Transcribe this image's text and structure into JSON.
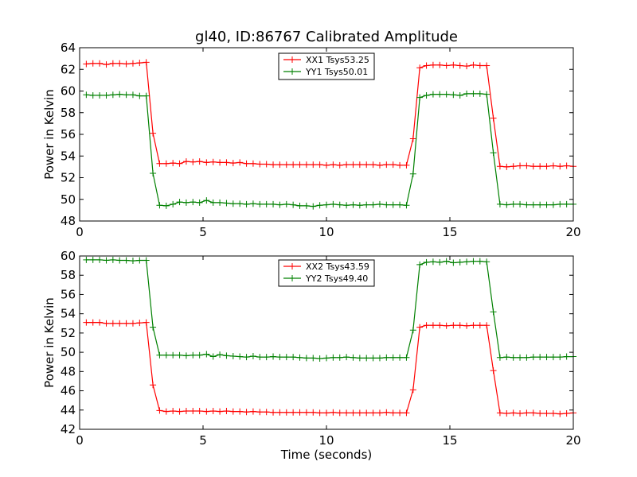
{
  "figure": {
    "title": "gl40, ID:86767 Calibrated Amplitude",
    "xlabel": "Time (seconds)"
  },
  "chart_data": [
    {
      "type": "line",
      "ylabel": "Power in Kelvin",
      "xlim": [
        0,
        20
      ],
      "ylim": [
        48,
        64
      ],
      "xticks": [
        "0",
        "5",
        "10",
        "15",
        "20"
      ],
      "yticks": [
        "48",
        "50",
        "52",
        "54",
        "56",
        "58",
        "60",
        "62",
        "64"
      ],
      "legend_position": "top-center",
      "x": [
        0.27,
        0.54,
        0.81,
        1.08,
        1.35,
        1.62,
        1.89,
        2.16,
        2.43,
        2.7,
        2.97,
        3.24,
        3.51,
        3.78,
        4.05,
        4.32,
        4.59,
        4.86,
        5.14,
        5.41,
        5.68,
        5.95,
        6.22,
        6.49,
        6.76,
        7.03,
        7.3,
        7.57,
        7.84,
        8.11,
        8.38,
        8.65,
        8.92,
        9.19,
        9.46,
        9.73,
        10.0,
        10.27,
        10.54,
        10.81,
        11.08,
        11.35,
        11.62,
        11.89,
        12.16,
        12.43,
        12.7,
        12.97,
        13.24,
        13.51,
        13.78,
        14.05,
        14.32,
        14.59,
        14.86,
        15.14,
        15.41,
        15.68,
        15.95,
        16.22,
        16.49,
        16.76,
        17.03,
        17.3,
        17.57,
        17.84,
        18.11,
        18.38,
        18.65,
        18.92,
        19.19,
        19.46,
        19.73,
        20.0
      ],
      "series": [
        {
          "name": "XX1 Tsys53.25",
          "color": "#ff0000",
          "values": [
            62.5,
            62.55,
            62.55,
            62.45,
            62.55,
            62.55,
            62.5,
            62.55,
            62.6,
            62.65,
            56.1,
            53.3,
            53.3,
            53.35,
            53.3,
            53.5,
            53.45,
            53.5,
            53.4,
            53.45,
            53.4,
            53.4,
            53.35,
            53.4,
            53.3,
            53.3,
            53.25,
            53.25,
            53.2,
            53.2,
            53.2,
            53.2,
            53.2,
            53.2,
            53.2,
            53.2,
            53.15,
            53.2,
            53.15,
            53.2,
            53.2,
            53.2,
            53.2,
            53.2,
            53.15,
            53.2,
            53.2,
            53.15,
            53.15,
            55.6,
            62.15,
            62.35,
            62.4,
            62.4,
            62.35,
            62.4,
            62.35,
            62.3,
            62.4,
            62.35,
            62.35,
            57.5,
            53.05,
            53.0,
            53.05,
            53.1,
            53.1,
            53.05,
            53.05,
            53.05,
            53.1,
            53.05,
            53.1,
            53.05
          ]
        },
        {
          "name": "YY1 Tsys50.01",
          "color": "#008000",
          "values": [
            59.65,
            59.6,
            59.6,
            59.6,
            59.65,
            59.7,
            59.65,
            59.65,
            59.55,
            59.55,
            52.4,
            49.45,
            49.4,
            49.55,
            49.75,
            49.7,
            49.75,
            49.7,
            49.9,
            49.7,
            49.7,
            49.65,
            49.6,
            49.6,
            49.55,
            49.6,
            49.55,
            49.55,
            49.55,
            49.5,
            49.55,
            49.5,
            49.4,
            49.4,
            49.35,
            49.45,
            49.5,
            49.55,
            49.5,
            49.45,
            49.5,
            49.45,
            49.5,
            49.5,
            49.55,
            49.5,
            49.5,
            49.5,
            49.45,
            52.35,
            59.4,
            59.6,
            59.7,
            59.7,
            59.7,
            59.65,
            59.6,
            59.75,
            59.75,
            59.75,
            59.7,
            54.3,
            49.55,
            49.5,
            49.55,
            49.55,
            49.5,
            49.5,
            49.5,
            49.5,
            49.5,
            49.55,
            49.55,
            49.55
          ]
        }
      ]
    },
    {
      "type": "line",
      "ylabel": "Power in Kelvin",
      "xlabel": "Time (seconds)",
      "xlim": [
        0,
        20
      ],
      "ylim": [
        42,
        60
      ],
      "xticks": [
        "0",
        "5",
        "10",
        "15",
        "20"
      ],
      "yticks": [
        "42",
        "44",
        "46",
        "48",
        "50",
        "52",
        "54",
        "56",
        "58",
        "60"
      ],
      "legend_position": "top-center",
      "x": [
        0.27,
        0.54,
        0.81,
        1.08,
        1.35,
        1.62,
        1.89,
        2.16,
        2.43,
        2.7,
        2.97,
        3.24,
        3.51,
        3.78,
        4.05,
        4.32,
        4.59,
        4.86,
        5.14,
        5.41,
        5.68,
        5.95,
        6.22,
        6.49,
        6.76,
        7.03,
        7.3,
        7.57,
        7.84,
        8.11,
        8.38,
        8.65,
        8.92,
        9.19,
        9.46,
        9.73,
        10.0,
        10.27,
        10.54,
        10.81,
        11.08,
        11.35,
        11.62,
        11.89,
        12.16,
        12.43,
        12.7,
        12.97,
        13.24,
        13.51,
        13.78,
        14.05,
        14.32,
        14.59,
        14.86,
        15.14,
        15.41,
        15.68,
        15.95,
        16.22,
        16.49,
        16.76,
        17.03,
        17.3,
        17.57,
        17.84,
        18.11,
        18.38,
        18.65,
        18.92,
        19.19,
        19.46,
        19.73,
        20.0
      ],
      "series": [
        {
          "name": "XX2 Tsys43.59",
          "color": "#ff0000",
          "values": [
            53.1,
            53.1,
            53.1,
            53.0,
            53.0,
            53.0,
            53.0,
            53.0,
            53.05,
            53.1,
            46.6,
            43.95,
            43.85,
            43.9,
            43.85,
            43.9,
            43.9,
            43.9,
            43.85,
            43.9,
            43.85,
            43.9,
            43.85,
            43.85,
            43.8,
            43.85,
            43.8,
            43.8,
            43.75,
            43.75,
            43.75,
            43.75,
            43.75,
            43.75,
            43.75,
            43.7,
            43.7,
            43.75,
            43.7,
            43.7,
            43.7,
            43.7,
            43.7,
            43.7,
            43.7,
            43.75,
            43.7,
            43.7,
            43.7,
            46.1,
            52.6,
            52.8,
            52.8,
            52.8,
            52.75,
            52.8,
            52.8,
            52.75,
            52.8,
            52.8,
            52.8,
            48.1,
            43.7,
            43.65,
            43.7,
            43.65,
            43.7,
            43.7,
            43.65,
            43.65,
            43.65,
            43.6,
            43.65,
            43.7
          ]
        },
        {
          "name": "YY2 Tsys49.40",
          "color": "#008000",
          "values": [
            59.6,
            59.6,
            59.6,
            59.55,
            59.6,
            59.55,
            59.55,
            59.5,
            59.55,
            59.55,
            52.6,
            49.7,
            49.7,
            49.7,
            49.7,
            49.65,
            49.7,
            49.7,
            49.8,
            49.55,
            49.75,
            49.65,
            49.6,
            49.55,
            49.5,
            49.6,
            49.5,
            49.5,
            49.55,
            49.5,
            49.5,
            49.5,
            49.45,
            49.4,
            49.4,
            49.35,
            49.4,
            49.45,
            49.45,
            49.5,
            49.45,
            49.4,
            49.4,
            49.4,
            49.4,
            49.45,
            49.45,
            49.45,
            49.45,
            52.3,
            59.1,
            59.35,
            59.4,
            59.35,
            59.45,
            59.3,
            59.35,
            59.4,
            59.45,
            59.45,
            59.4,
            54.2,
            49.45,
            49.5,
            49.45,
            49.45,
            49.45,
            49.5,
            49.5,
            49.5,
            49.5,
            49.5,
            49.55,
            49.55
          ]
        }
      ]
    }
  ]
}
